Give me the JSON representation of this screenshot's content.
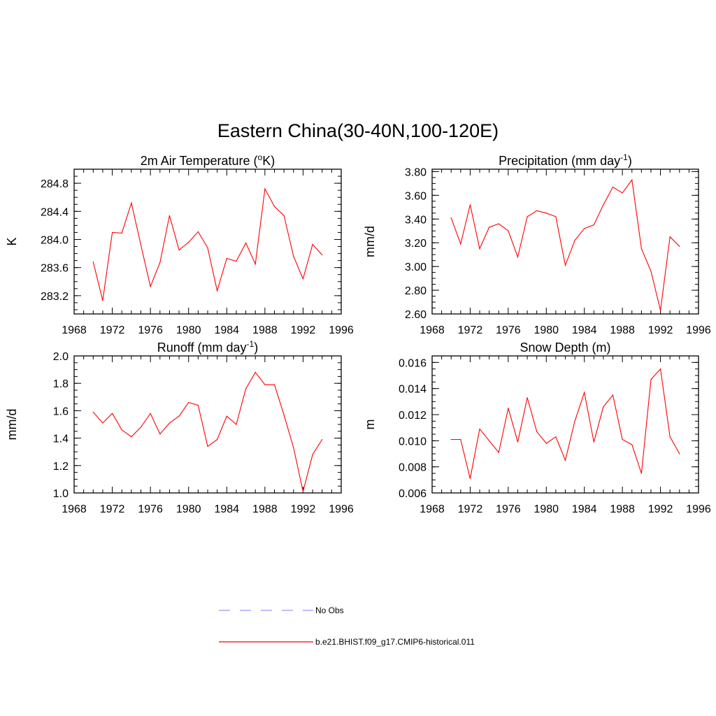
{
  "main_title": "Eastern China(30-40N,100-120E)",
  "legend": {
    "entries": [
      {
        "label": "No Obs",
        "color": "#9999ff",
        "style": "dashed"
      },
      {
        "label": "b.e21.BHIST.f09_g17.CMIP6-historical.011",
        "color": "#ff0000",
        "style": "solid"
      }
    ]
  },
  "chart_data": [
    {
      "type": "line",
      "title": "2m Air Temperature (",
      "title_sup": "o",
      "title_after": "K)",
      "ylabel": "K",
      "xlim": [
        1968,
        1996
      ],
      "ylim": [
        282.94,
        285.0
      ],
      "xticks": [
        "1968",
        "1972",
        "1976",
        "1980",
        "1984",
        "1988",
        "1992",
        "1996"
      ],
      "yticks": [
        "283.2",
        "283.6",
        "284.0",
        "284.4",
        "284.8"
      ],
      "ytick_values": [
        283.2,
        283.6,
        284.0,
        284.4,
        284.8
      ],
      "yminor_step": 0.1,
      "x": [
        1970,
        1971,
        1972,
        1973,
        1974,
        1975,
        1976,
        1977,
        1978,
        1979,
        1980,
        1981,
        1982,
        1983,
        1984,
        1985,
        1986,
        1987,
        1988,
        1989,
        1990,
        1991,
        1992,
        1993,
        1994
      ],
      "series": [
        {
          "values": [
            283.68,
            283.13,
            284.1,
            284.09,
            284.52,
            283.92,
            283.33,
            283.67,
            284.34,
            283.85,
            283.96,
            284.11,
            283.88,
            283.27,
            283.73,
            283.69,
            283.95,
            283.65,
            284.72,
            284.47,
            284.34,
            283.76,
            283.44,
            283.93,
            283.78
          ],
          "color": "#ff0000"
        }
      ]
    },
    {
      "type": "line",
      "title": "Precipitation (mm day",
      "title_sup": "-1",
      "title_after": ")",
      "ylabel": "mm/d",
      "xlim": [
        1968,
        1996
      ],
      "ylim": [
        2.6,
        3.82
      ],
      "xticks": [
        "1968",
        "1972",
        "1976",
        "1980",
        "1984",
        "1988",
        "1992",
        "1996"
      ],
      "yticks": [
        "2.60",
        "2.80",
        "3.00",
        "3.20",
        "3.40",
        "3.60",
        "3.80"
      ],
      "ytick_values": [
        2.6,
        2.8,
        3.0,
        3.2,
        3.4,
        3.6,
        3.8
      ],
      "yminor_step": 0.05,
      "x": [
        1970,
        1971,
        1972,
        1973,
        1974,
        1975,
        1976,
        1977,
        1978,
        1979,
        1980,
        1981,
        1982,
        1983,
        1984,
        1985,
        1986,
        1987,
        1988,
        1989,
        1990,
        1991,
        1992,
        1993,
        1994
      ],
      "series": [
        {
          "values": [
            3.41,
            3.19,
            3.52,
            3.15,
            3.33,
            3.36,
            3.3,
            3.08,
            3.42,
            3.47,
            3.45,
            3.42,
            3.01,
            3.22,
            3.32,
            3.35,
            3.52,
            3.67,
            3.62,
            3.73,
            3.15,
            2.96,
            2.63,
            3.25,
            3.17
          ],
          "color": "#ff0000"
        }
      ]
    },
    {
      "type": "line",
      "title": "Runoff (mm day",
      "title_sup": "-1",
      "title_after": ")",
      "ylabel": "mm/d",
      "xlim": [
        1968,
        1996
      ],
      "ylim": [
        1.0,
        2.0
      ],
      "xticks": [
        "1968",
        "1972",
        "1976",
        "1980",
        "1984",
        "1988",
        "1992",
        "1996"
      ],
      "yticks": [
        "1.0",
        "1.2",
        "1.4",
        "1.6",
        "1.8",
        "2.0"
      ],
      "ytick_values": [
        1.0,
        1.2,
        1.4,
        1.6,
        1.8,
        2.0
      ],
      "yminor_step": 0.05,
      "x": [
        1970,
        1971,
        1972,
        1973,
        1974,
        1975,
        1976,
        1977,
        1978,
        1979,
        1980,
        1981,
        1982,
        1983,
        1984,
        1985,
        1986,
        1987,
        1988,
        1989,
        1990,
        1991,
        1992,
        1993,
        1994
      ],
      "series": [
        {
          "values": [
            1.59,
            1.51,
            1.58,
            1.46,
            1.41,
            1.48,
            1.58,
            1.43,
            1.51,
            1.56,
            1.66,
            1.64,
            1.34,
            1.39,
            1.56,
            1.5,
            1.76,
            1.88,
            1.79,
            1.79,
            1.57,
            1.33,
            1.01,
            1.28,
            1.39
          ],
          "color": "#ff0000"
        }
      ]
    },
    {
      "type": "line",
      "title": "Snow Depth (m)",
      "title_sup": "",
      "title_after": "",
      "ylabel": "m",
      "xlim": [
        1968,
        1996
      ],
      "ylim": [
        0.006,
        0.0165
      ],
      "xticks": [
        "1968",
        "1972",
        "1976",
        "1980",
        "1984",
        "1988",
        "1992",
        "1996"
      ],
      "yticks": [
        "0.006",
        "0.008",
        "0.010",
        "0.012",
        "0.014",
        "0.016"
      ],
      "ytick_values": [
        0.006,
        0.008,
        0.01,
        0.012,
        0.014,
        0.016
      ],
      "yminor_step": 0.0005,
      "x": [
        1970,
        1971,
        1972,
        1973,
        1974,
        1975,
        1976,
        1977,
        1978,
        1979,
        1980,
        1981,
        1982,
        1983,
        1984,
        1985,
        1986,
        1987,
        1988,
        1989,
        1990,
        1991,
        1992,
        1993,
        1994
      ],
      "series": [
        {
          "values": [
            0.0101,
            0.0101,
            0.0071,
            0.0109,
            0.01,
            0.0091,
            0.0125,
            0.0099,
            0.0133,
            0.0107,
            0.0098,
            0.0103,
            0.0085,
            0.0115,
            0.0137,
            0.0099,
            0.0126,
            0.0135,
            0.0101,
            0.0097,
            0.0075,
            0.0147,
            0.0155,
            0.0103,
            0.009
          ],
          "color": "#ff0000"
        }
      ]
    }
  ]
}
